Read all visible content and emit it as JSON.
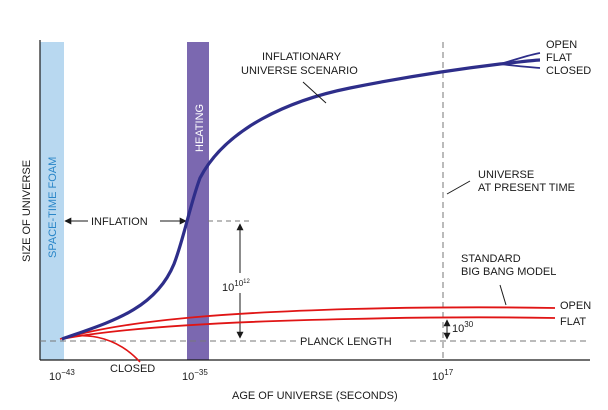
{
  "diagram": {
    "y_axis_label": "SIZE OF UNIVERSE",
    "x_axis_label": "AGE OF UNIVERSE (SECONDS)",
    "x_ticks": [
      {
        "base": "10",
        "exp": "−43"
      },
      {
        "base": "10",
        "exp": "−35"
      },
      {
        "base": "10",
        "exp": "17"
      }
    ],
    "bands": {
      "spacetime_foam": "SPACE-TIME FOAM",
      "heating": "HEATING"
    },
    "annotations": {
      "inflationary_line1": "INFLATIONARY",
      "inflationary_line2": "UNIVERSE SCENARIO",
      "present_line1": "UNIVERSE",
      "present_line2": "AT PRESENT TIME",
      "standard_line1": "STANDARD",
      "standard_line2": "BIG BANG MODEL",
      "inflation": "INFLATION",
      "planck_length": "PLANCK LENGTH",
      "inflation_factor": {
        "base": "10",
        "exp1": "10",
        "exp2": "12"
      },
      "standard_factor": {
        "base": "10",
        "exp": "30"
      }
    },
    "curve_labels": {
      "inflation_open": "OPEN",
      "inflation_flat": "FLAT",
      "inflation_closed": "CLOSED",
      "standard_open": "OPEN",
      "standard_flat": "FLAT",
      "standard_closed": "CLOSED"
    },
    "colors": {
      "inflation_curve": "#2e2e8a",
      "standard_curve": "#e01515",
      "foam_band": "#b8d8f0",
      "heating_band": "#7b68b0",
      "axis": "#1a1a1a",
      "dashed": "#777777"
    }
  }
}
